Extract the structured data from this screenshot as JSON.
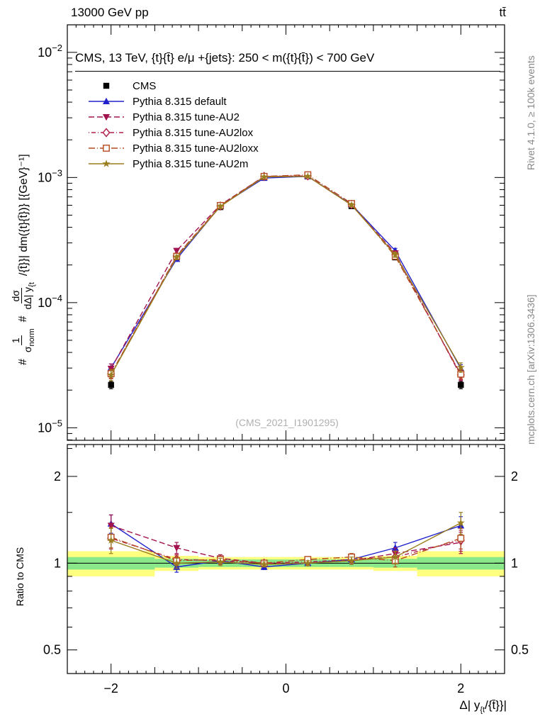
{
  "chart_data": {
    "type": "line",
    "header": {
      "left": "13000 GeV pp",
      "right": "tt̄"
    },
    "title": "CMS, 13 TeV, {t}{t̄} e/μ +{jets}: 250 < m({t}{t̄}) < 700 GeV",
    "watermark": "(CMS_2021_I1901295)",
    "right_label_top": "Rivet 4.1.0, ≥ 100k events",
    "right_label_bottom": "mcplots.cern.ch [arXiv:1306.3436]",
    "ylabel_ratio": "Ratio to CMS",
    "ylabel_main": {
      "hash1": "#",
      "frac1_num": "1",
      "frac1_den_base": "σ",
      "frac1_den_sub": "norm",
      "hash2": "#",
      "frac2_num": "dσ",
      "frac2_den_base": "dΔ| y",
      "frac2_den_sub": "{t",
      "tail": "/{t̄}}| dm({t}{t̄})} [{GeV}⁻¹]"
    },
    "xlabel": {
      "pre": "Δ| y",
      "sub": "{t",
      "post": "/{t̄}}|"
    },
    "axes": {
      "x_range": [
        -2.5,
        2.5
      ],
      "x_major_ticks": [
        -2,
        0,
        2
      ],
      "y_main_scale": "log",
      "y_main_top_exp": -1.78,
      "y_main_bottom_exp": -5.1,
      "y_main_label_exps": [
        -2,
        -3,
        -4,
        -5
      ],
      "y_ratio_scale": "log",
      "y_ratio_top": 2.58,
      "y_ratio_bottom": 0.414,
      "y_ratio_major_ticks": [
        0.5,
        1,
        2
      ],
      "y_ratio_minor_ticks": [
        0.6,
        0.7,
        0.8,
        0.9,
        1.5,
        2.5
      ]
    },
    "x": [
      -2,
      -1.25,
      -0.75,
      -0.25,
      0.25,
      0.75,
      1.25,
      2
    ],
    "bin_edges": [
      -2.5,
      -1.5,
      -1,
      -0.5,
      0,
      0.5,
      1,
      1.5,
      2.5
    ],
    "cms": {
      "label": "CMS",
      "color": "#000000",
      "marker": "square",
      "values": [
        2.2e-05,
        0.00023,
        0.00058,
        0.00102,
        0.00102,
        0.00059,
        0.00023,
        2.2e-05
      ],
      "errors": [
        1.5e-06,
        9e-06,
        1.6e-05,
        2.2e-05,
        2.2e-05,
        1.6e-05,
        9e-06,
        1.5e-06
      ]
    },
    "band": {
      "yellow_color": "#ffff80",
      "green_color": "#8ae88a",
      "yellow_half_width": [
        0.1,
        0.06,
        0.05,
        0.05,
        0.05,
        0.05,
        0.06,
        0.1
      ],
      "green_half_width": [
        0.05,
        0.035,
        0.03,
        0.03,
        0.03,
        0.03,
        0.035,
        0.05
      ]
    },
    "series": [
      {
        "label": "Pythia 8.315 default",
        "color": "#2222cc",
        "line": "solid",
        "marker": "triangle-up",
        "ratio": [
          1.37,
          0.97,
          1.02,
          0.97,
          1.0,
          1.03,
          1.13,
          1.35
        ],
        "ratio_err": [
          0.1,
          0.04,
          0.03,
          0.02,
          0.02,
          0.03,
          0.05,
          0.1
        ]
      },
      {
        "label": "Pythia 8.315 tune-AU2",
        "color": "#a3134f",
        "line": "dash",
        "marker": "triangle-down",
        "ratio": [
          1.35,
          1.13,
          1.04,
          1.0,
          1.0,
          1.02,
          1.08,
          1.18
        ],
        "ratio_err": [
          0.12,
          0.05,
          0.03,
          0.02,
          0.02,
          0.03,
          0.05,
          0.1
        ]
      },
      {
        "label": "Pythia 8.315 tune-AU2lox",
        "color": "#b0204a",
        "line": "dash-dot",
        "marker": "diamond-open",
        "ratio": [
          1.22,
          1.03,
          1.02,
          1.0,
          1.01,
          1.03,
          1.05,
          1.2
        ],
        "ratio_err": [
          0.1,
          0.04,
          0.03,
          0.02,
          0.02,
          0.03,
          0.05,
          0.1
        ]
      },
      {
        "label": "Pythia 8.315 tune-AU2loxx",
        "color": "#b44a1e",
        "line": "dash-dot-wide",
        "marker": "square-open",
        "ratio": [
          1.23,
          1.02,
          1.03,
          1.0,
          1.03,
          1.05,
          1.02,
          1.22
        ],
        "ratio_err": [
          0.1,
          0.04,
          0.03,
          0.02,
          0.02,
          0.03,
          0.05,
          0.1
        ]
      },
      {
        "label": "Pythia 8.315 tune-AU2m",
        "color": "#9a7d1e",
        "line": "solid",
        "marker": "star",
        "ratio": [
          1.2,
          1.0,
          1.01,
          0.99,
          1.0,
          1.02,
          1.05,
          1.38
        ],
        "ratio_err": [
          0.12,
          0.04,
          0.03,
          0.02,
          0.02,
          0.03,
          0.05,
          0.12
        ]
      }
    ]
  }
}
